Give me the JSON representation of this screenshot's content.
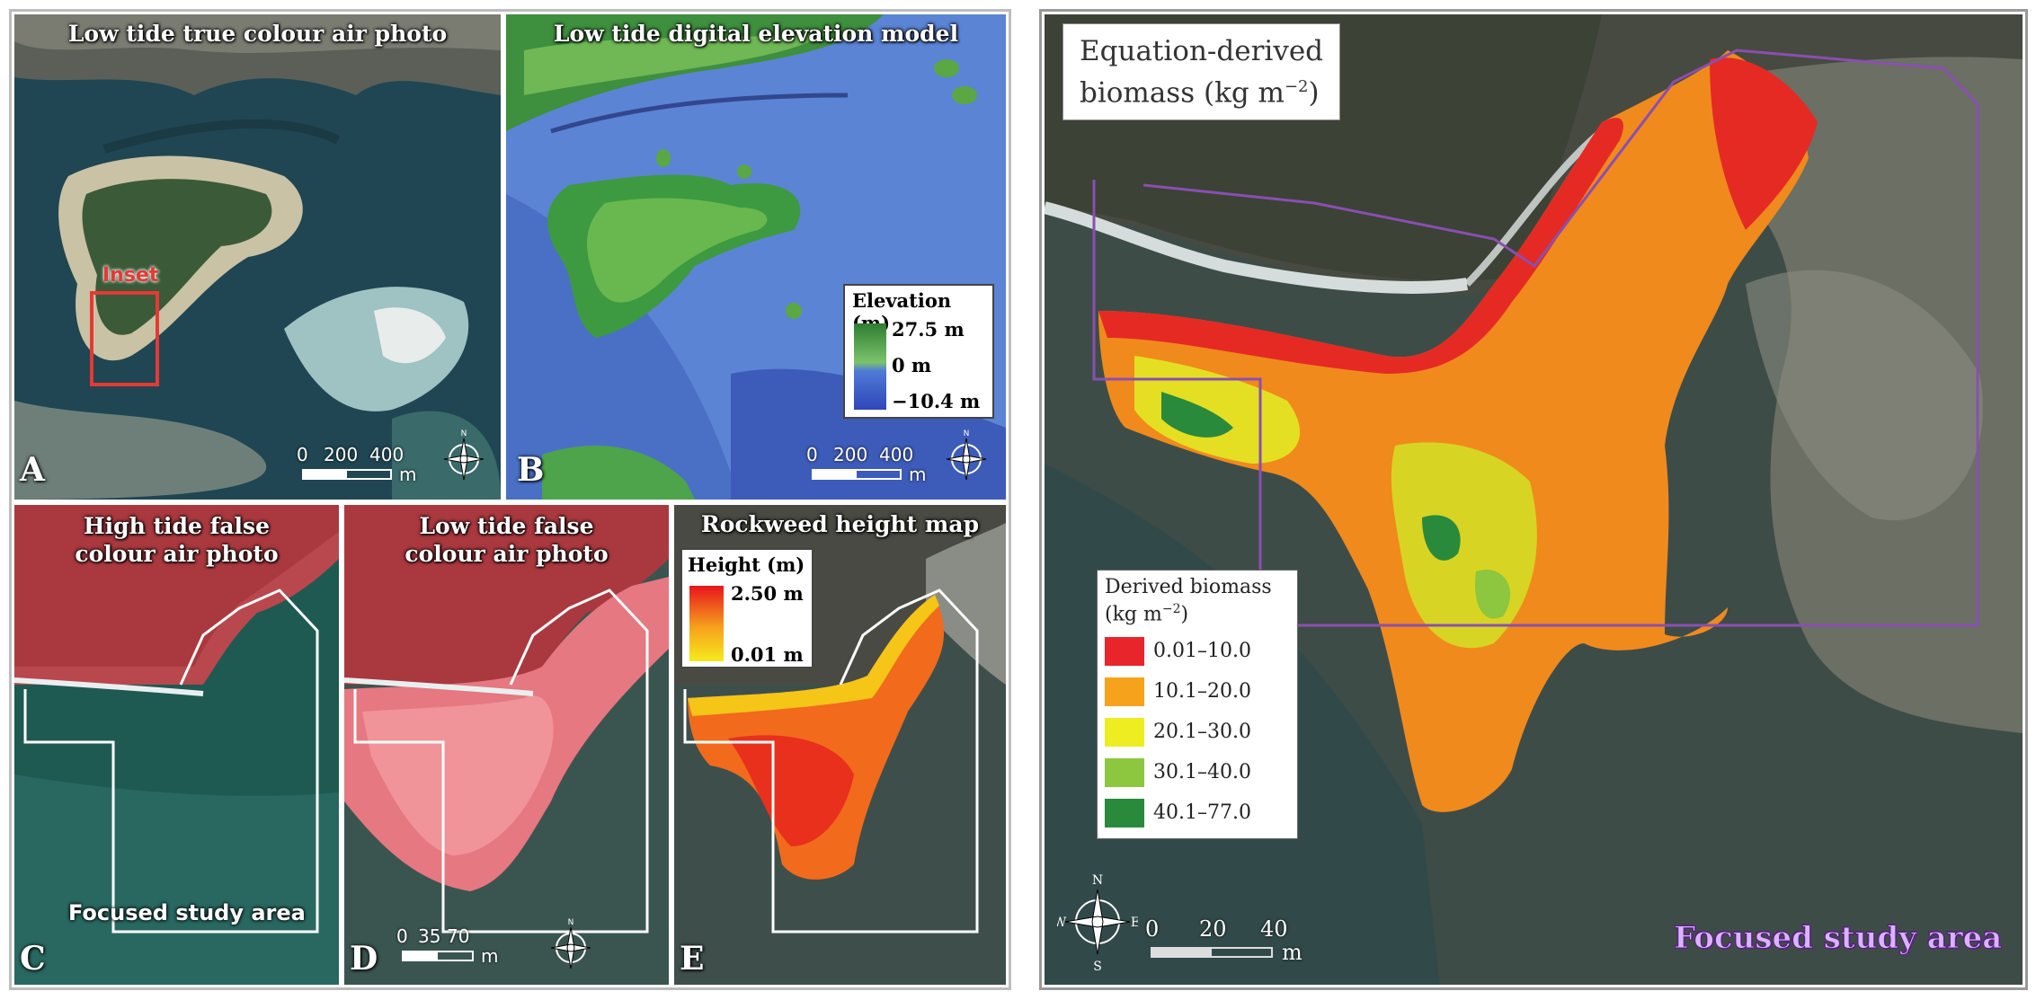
{
  "panels": {
    "a": {
      "title": "Low tide true colour air photo",
      "letter": "A",
      "inset_label": "Inset",
      "scale": {
        "ticks": [
          "0",
          "200",
          "400"
        ],
        "unit": "m"
      }
    },
    "b": {
      "title": "Low tide digital elevation model",
      "letter": "B",
      "scale": {
        "ticks": [
          "0",
          "200",
          "400"
        ],
        "unit": "m"
      },
      "legend": {
        "title": "Elevation (m)",
        "max": "27.5 m",
        "mid": "0 m",
        "min": "−10.4 m",
        "colors": [
          "#2e7d32",
          "#7cc36b",
          "#4f7bd6",
          "#3046b8"
        ]
      }
    },
    "c": {
      "title_line1": "High tide false",
      "title_line2": "colour air photo",
      "letter": "C",
      "caption": "Focused study area"
    },
    "d": {
      "title_line1": "Low tide false",
      "title_line2": "colour air photo",
      "letter": "D",
      "scale": {
        "ticks": [
          "0",
          "35",
          "70"
        ],
        "unit": "m"
      }
    },
    "e": {
      "title": "Rockweed height map",
      "letter": "E",
      "legend": {
        "title": "Height (m)",
        "max": "2.50 m",
        "min": "0.01 m",
        "colors": [
          "#e8141c",
          "#f6a11c",
          "#f6ea1c"
        ]
      }
    }
  },
  "compass": {
    "n": "N",
    "s": "S",
    "e": "E",
    "w": "W"
  },
  "big": {
    "title_line1": "Equation-derived",
    "title_line2": "biomass (kg m",
    "title_sup": "−2",
    "title_end": ")",
    "legend": {
      "title_line1": "Derived biomass",
      "title_line2": "(kg m",
      "title_sup": "−2",
      "title_end": ")",
      "classes": [
        {
          "label": "0.01–10.0",
          "color": "#e8252b"
        },
        {
          "label": "10.1–20.0",
          "color": "#f7a21c"
        },
        {
          "label": "20.1–30.0",
          "color": "#eded22"
        },
        {
          "label": "30.1–40.0",
          "color": "#8dc63f"
        },
        {
          "label": "40.1–77.0",
          "color": "#2a8a3c"
        }
      ]
    },
    "scale": {
      "ticks": [
        "0",
        "20",
        "40"
      ],
      "unit": "m"
    },
    "focus_label": "Focused study area"
  },
  "colors": {
    "boundary_white": "#ffffff",
    "boundary_purple": "#8a4fb0",
    "inset_red": "#e53935"
  }
}
